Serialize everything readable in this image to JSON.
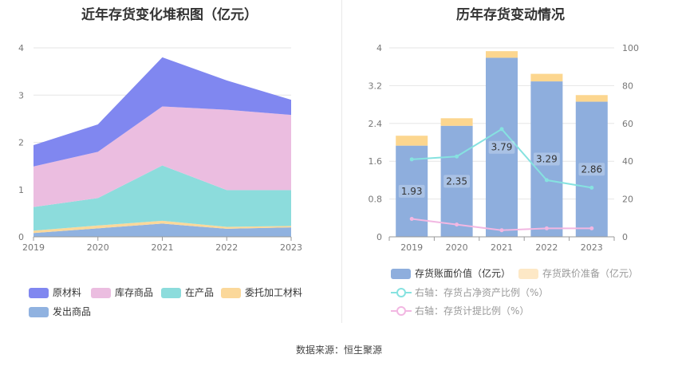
{
  "left_title": "近年存货变化堆积图（亿元）",
  "right_title": "历年存货变动情况",
  "source": "数据来源：恒生聚源",
  "colors": {
    "原材料": "#8087f0",
    "库存商品": "#ebbde0",
    "在产品": "#8cdcdc",
    "委托加工材料": "#fbd89a",
    "发出商品": "#90b2e0",
    "bar_book": "#8eaedd",
    "bar_reserve": "#fcd68f",
    "line_ratio": "#86e2e0",
    "line_provision": "#f2b7e2"
  },
  "chart_data": [
    {
      "type": "area",
      "title": "近年存货变化堆积图（亿元）",
      "x": [
        "2019",
        "2020",
        "2021",
        "2022",
        "2023"
      ],
      "ylim": [
        0,
        4
      ],
      "yticks": [
        0,
        1,
        2,
        3,
        4
      ],
      "stacked": true,
      "series": [
        {
          "name": "发出商品",
          "values": [
            0.08,
            0.18,
            0.28,
            0.17,
            0.2
          ]
        },
        {
          "name": "委托加工材料",
          "values": [
            0.05,
            0.06,
            0.06,
            0.04,
            0.03
          ]
        },
        {
          "name": "在产品",
          "values": [
            0.5,
            0.58,
            1.17,
            0.78,
            0.76
          ]
        },
        {
          "name": "库存商品",
          "values": [
            0.86,
            0.98,
            1.25,
            1.7,
            1.59
          ]
        },
        {
          "name": "原材料",
          "values": [
            0.45,
            0.58,
            1.04,
            0.62,
            0.32
          ]
        }
      ],
      "legend": [
        "原材料",
        "库存商品",
        "在产品",
        "委托加工材料",
        "发出商品"
      ],
      "legend_position": "bottom"
    },
    {
      "type": "bar",
      "title": "历年存货变动情况",
      "categories": [
        "2019",
        "2020",
        "2021",
        "2022",
        "2023"
      ],
      "ylim_left": [
        0,
        4
      ],
      "yticks_left": [
        "0",
        "0.8",
        "1.6",
        "2.4",
        "3.2",
        "4"
      ],
      "ylim_right": [
        0,
        100
      ],
      "yticks_right": [
        "0",
        "20",
        "40",
        "60",
        "80",
        "100"
      ],
      "stacked": true,
      "series": [
        {
          "name": "存货账面价值（亿元）",
          "type": "bar",
          "axis": "left",
          "values": [
            1.93,
            2.35,
            3.79,
            3.29,
            2.86
          ],
          "labels": [
            "1.93",
            "2.35",
            "3.79",
            "3.29",
            "2.86"
          ]
        },
        {
          "name": "存货跌价准备（亿元）",
          "type": "bar",
          "axis": "left",
          "values": [
            0.21,
            0.16,
            0.14,
            0.16,
            0.14
          ]
        },
        {
          "name": "右轴：存货占净资产比例（%）",
          "type": "line",
          "axis": "right",
          "values": [
            41,
            42.5,
            57,
            30,
            26
          ]
        },
        {
          "name": "右轴：存货计提比例（%）",
          "type": "line",
          "axis": "right",
          "values": [
            9.5,
            6.5,
            3.5,
            4.5,
            4.5
          ]
        }
      ],
      "legend_position": "bottom"
    }
  ]
}
